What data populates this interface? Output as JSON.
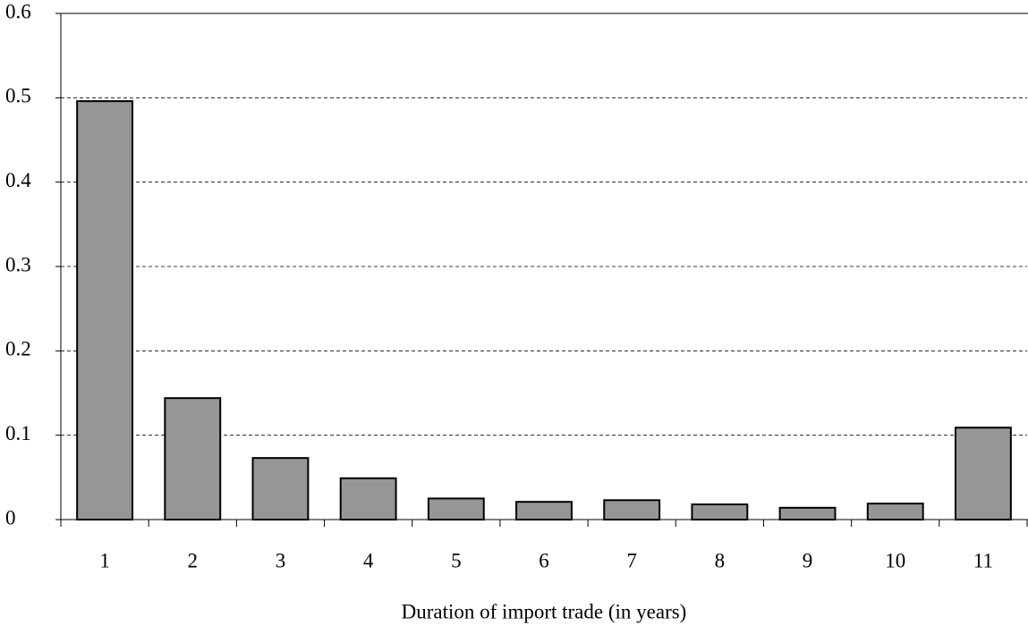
{
  "chart_data": {
    "type": "bar",
    "x_label": "Duration of import trade (in years)",
    "categories": [
      "1",
      "2",
      "3",
      "4",
      "5",
      "6",
      "7",
      "8",
      "9",
      "10",
      "11"
    ],
    "values": [
      0.496,
      0.144,
      0.073,
      0.049,
      0.025,
      0.021,
      0.023,
      0.018,
      0.014,
      0.019,
      0.109
    ],
    "color": "#969696",
    "ylim": [
      0,
      0.6
    ],
    "yticks": [
      0,
      0.1,
      0.2,
      0.3,
      0.4,
      0.5,
      0.6
    ],
    "grid": true
  }
}
